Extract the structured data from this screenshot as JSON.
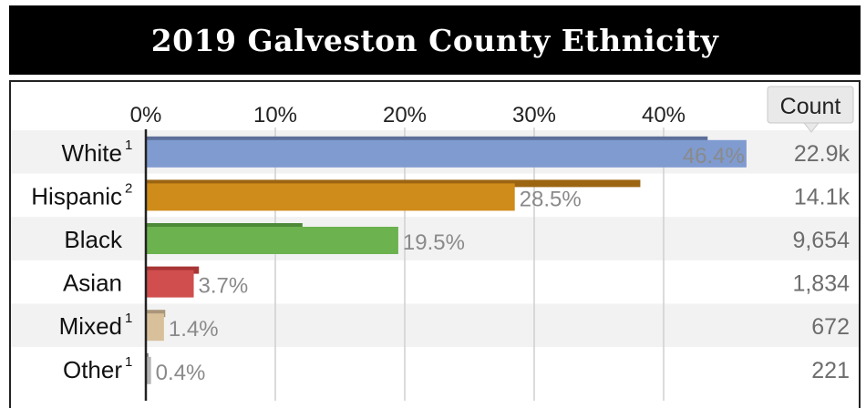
{
  "title": "2019 Galveston County Ethnicity",
  "count_header": "Count",
  "chart_data": {
    "type": "bar",
    "orientation": "horizontal",
    "title": "2019 Galveston County Ethnicity",
    "xlim": [
      0,
      50
    ],
    "ticks": [
      0,
      10,
      20,
      30,
      40
    ],
    "tick_labels": [
      "0%",
      "10%",
      "20%",
      "30%",
      "40%"
    ],
    "grid": true,
    "categories": [
      {
        "name": "White",
        "sup": "1"
      },
      {
        "name": "Hispanic",
        "sup": "2"
      },
      {
        "name": "Black",
        "sup": ""
      },
      {
        "name": "Asian",
        "sup": ""
      },
      {
        "name": "Mixed",
        "sup": "1"
      },
      {
        "name": "Other",
        "sup": "1"
      }
    ],
    "values": [
      46.4,
      28.5,
      19.5,
      3.7,
      1.4,
      0.4
    ],
    "value_labels": [
      "46.4%",
      "28.5%",
      "19.5%",
      "3.7%",
      "1.4%",
      "0.4%"
    ],
    "comparison_values": [
      43.4,
      38.2,
      12.1,
      4.1,
      1.5,
      0.2
    ],
    "counts": [
      "22.9k",
      "14.1k",
      "9,654",
      "1,834",
      "672",
      "221"
    ],
    "colors": [
      "#7f9bd0",
      "#d08c1a",
      "#6cb24f",
      "#d04e4e",
      "#d8c09b",
      "#b5b5b5"
    ],
    "comparison_colors": [
      "#5d6f99",
      "#9c6512",
      "#4d8a38",
      "#a83535",
      "#ab967a",
      "#7f7f7f"
    ]
  }
}
